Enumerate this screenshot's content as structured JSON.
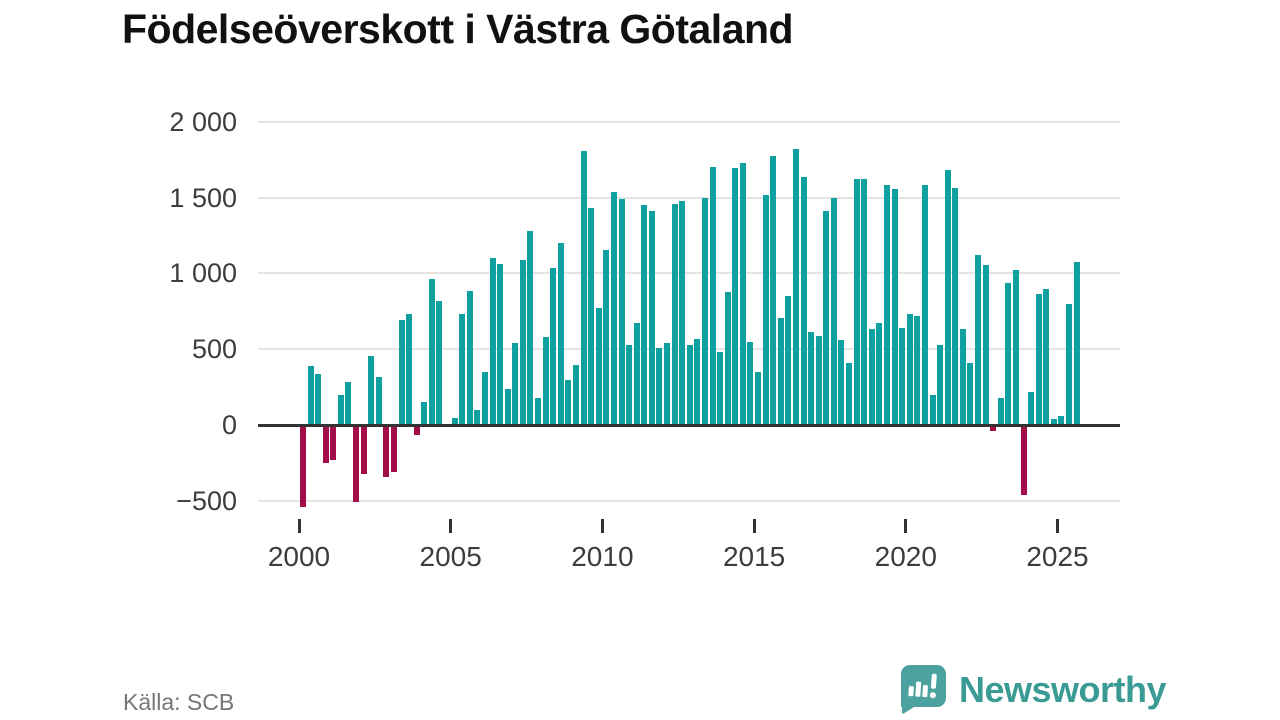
{
  "chart_data": {
    "type": "bar",
    "title": "Födelseöverskott i Västra Götaland",
    "source": "Källa: SCB",
    "period": "quarterly",
    "start_year": 2000,
    "start_quarter": 1,
    "values": [
      -540,
      390,
      340,
      -250,
      -230,
      200,
      285,
      -510,
      -320,
      455,
      315,
      -340,
      -310,
      690,
      730,
      -65,
      150,
      965,
      820,
      10,
      45,
      730,
      885,
      100,
      350,
      1105,
      1060,
      240,
      540,
      1090,
      1280,
      180,
      580,
      1035,
      1200,
      300,
      395,
      1810,
      1430,
      775,
      1155,
      1535,
      1490,
      530,
      670,
      1450,
      1410,
      510,
      540,
      1460,
      1480,
      525,
      565,
      1495,
      1700,
      480,
      875,
      1695,
      1730,
      545,
      350,
      1520,
      1775,
      705,
      850,
      1820,
      1635,
      615,
      590,
      1410,
      1500,
      560,
      410,
      1620,
      1625,
      635,
      675,
      1585,
      1555,
      640,
      735,
      720,
      1585,
      200,
      525,
      1685,
      1565,
      635,
      410,
      1120,
      1055,
      -40,
      180,
      940,
      1025,
      -460,
      220,
      865,
      895,
      40,
      60,
      800,
      1075
    ],
    "ylim": [
      -500,
      2000
    ],
    "grid": true,
    "yticks": [
      {
        "v": 2000,
        "label": "2 000"
      },
      {
        "v": 1500,
        "label": "1 500"
      },
      {
        "v": 1000,
        "label": "1 000"
      },
      {
        "v": 500,
        "label": "500"
      },
      {
        "v": 0,
        "label": "0"
      },
      {
        "v": -500,
        "label": "−500"
      }
    ],
    "xticks": [
      {
        "year": 2000,
        "label": "2000"
      },
      {
        "year": 2005,
        "label": "2005"
      },
      {
        "year": 2010,
        "label": "2010"
      },
      {
        "year": 2015,
        "label": "2015"
      },
      {
        "year": 2020,
        "label": "2020"
      },
      {
        "year": 2025,
        "label": "2025"
      }
    ],
    "colors": {
      "positive": "#0fa0a0",
      "negative": "#a30d49",
      "zero_line": "#333333",
      "gridline": "#e4e4e4",
      "axis_text": "#3d3d3d"
    }
  },
  "footer": {
    "brand": "Newsworthy",
    "brand_color": "#3a9b94",
    "icon_color": "#4ba29e"
  }
}
